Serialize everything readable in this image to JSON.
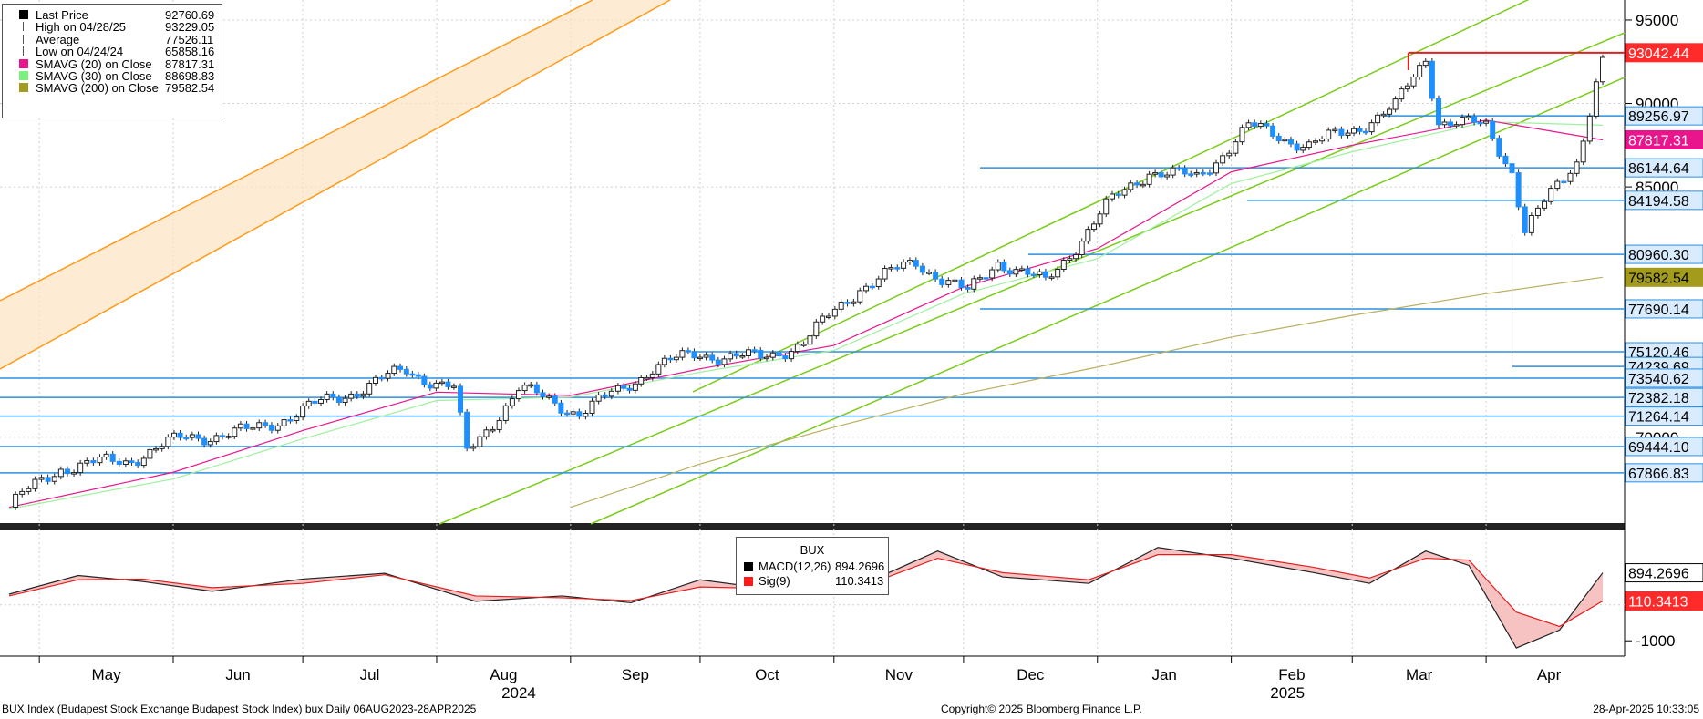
{
  "legend": {
    "rows": [
      {
        "label": "Last Price",
        "value": "92760.69",
        "color": "#000000",
        "marker": "square"
      },
      {
        "label": "High on 04/28/25",
        "value": "93229.05",
        "color": "#555555",
        "marker": "high"
      },
      {
        "label": "Average",
        "value": "77526.11",
        "color": "#555555",
        "marker": "avg"
      },
      {
        "label": "Low on 04/24/24",
        "value": "65858.16",
        "color": "#555555",
        "marker": "low"
      },
      {
        "label": "SMAVG (20)  on Close",
        "value": "87817.31",
        "color": "#e8158c",
        "marker": "square"
      },
      {
        "label": "SMAVG (30)  on Close",
        "value": "88698.83",
        "color": "#7cf07c",
        "marker": "square"
      },
      {
        "label": "SMAVG (200)  on Close",
        "value": "79582.54",
        "color": "#a39b1c",
        "marker": "square"
      }
    ]
  },
  "macd_legend": {
    "title": "BUX",
    "rows": [
      {
        "label": "MACD(12,26)",
        "value": "894.2696",
        "color": "#000000"
      },
      {
        "label": "Sig(9)",
        "value": "110.3413",
        "color": "#ff1a1a"
      }
    ]
  },
  "footer": {
    "left": "BUX Index (Budapest Stock Exchange Budapest Stock Index) bux  Daily 06AUG2023-28APR2025",
    "center": "Copyright© 2025 Bloomberg Finance L.P.",
    "right": "28-Apr-2025 10:33:05"
  },
  "chart_data": {
    "type": "line",
    "title": "",
    "price_axis": {
      "ylim": [
        64800,
        96200
      ],
      "ticks": [
        {
          "value": 95000,
          "label": "95000"
        },
        {
          "value": 90000,
          "label": "90000"
        },
        {
          "value": 85000,
          "label": "85000"
        },
        {
          "value": 70000,
          "label": "70000"
        }
      ]
    },
    "x_axis": {
      "months": [
        "May",
        "Jun",
        "Jul",
        "Aug",
        "Sep",
        "Oct",
        "Nov",
        "Dec",
        "Jan",
        "Feb",
        "Mar",
        "Apr"
      ],
      "years": [
        "2024",
        "2025"
      ]
    },
    "price_labels": [
      {
        "value": 93042.44,
        "label": "93042.44",
        "bg": "#ff2a2a",
        "fg": "#ffffff"
      },
      {
        "value": 89256.97,
        "label": "89256.97",
        "bg": "#d9ecff",
        "fg": "#000000"
      },
      {
        "value": 87817.31,
        "label": "87817.31",
        "bg": "#e8158c",
        "fg": "#ffffff"
      },
      {
        "value": 86144.64,
        "label": "86144.64",
        "bg": "#d9ecff",
        "fg": "#000000"
      },
      {
        "value": 84194.58,
        "label": "84194.58",
        "bg": "#d9ecff",
        "fg": "#000000"
      },
      {
        "value": 80960.3,
        "label": "80960.30",
        "bg": "#d9ecff",
        "fg": "#000000"
      },
      {
        "value": 79582.54,
        "label": "79582.54",
        "bg": "#a39b1c",
        "fg": "#000000"
      },
      {
        "value": 77690.14,
        "label": "77690.14",
        "bg": "#d9ecff",
        "fg": "#000000"
      },
      {
        "value": 75120.46,
        "label": "75120.46",
        "bg": "#d9ecff",
        "fg": "#000000"
      },
      {
        "value": 74239.69,
        "label": "74239.69",
        "bg": "#d9ecff",
        "fg": "#000000"
      },
      {
        "value": 73540.62,
        "label": "73540.62",
        "bg": "#d9ecff",
        "fg": "#000000"
      },
      {
        "value": 72382.18,
        "label": "72382.18",
        "bg": "#d9ecff",
        "fg": "#000000"
      },
      {
        "value": 71264.14,
        "label": "71264.14",
        "bg": "#d9ecff",
        "fg": "#000000"
      },
      {
        "value": 69444.1,
        "label": "69444.10",
        "bg": "#d9ecff",
        "fg": "#000000"
      },
      {
        "value": 67866.83,
        "label": "67866.83",
        "bg": "#d9ecff",
        "fg": "#000000"
      }
    ],
    "close_series": {
      "name": "Last Price",
      "x": [
        "2024-04-24",
        "2024-05-06",
        "2024-05-21",
        "2024-06-04",
        "2024-06-18",
        "2024-07-01",
        "2024-07-15",
        "2024-07-25",
        "2024-08-05",
        "2024-08-08",
        "2024-08-20",
        "2024-09-03",
        "2024-09-12",
        "2024-09-20",
        "2024-10-01",
        "2024-10-15",
        "2024-10-25",
        "2024-11-07",
        "2024-11-20",
        "2024-12-02",
        "2024-12-09",
        "2024-12-20",
        "2025-01-03",
        "2025-01-13",
        "2025-01-24",
        "2025-02-05",
        "2025-02-19",
        "2025-02-28",
        "2025-03-11",
        "2025-03-18",
        "2025-03-21",
        "2025-04-01",
        "2025-04-07",
        "2025-04-10",
        "2025-04-22",
        "2025-04-28"
      ],
      "values": [
        65900,
        68200,
        68600,
        70000,
        70300,
        71600,
        73000,
        74000,
        72900,
        69000,
        72900,
        71500,
        72700,
        74200,
        75000,
        74700,
        75700,
        79000,
        80500,
        78600,
        80600,
        79200,
        83800,
        86000,
        85500,
        88600,
        87500,
        88300,
        89800,
        92700,
        89000,
        88600,
        86000,
        82400,
        86600,
        92760
      ]
    },
    "sma20": {
      "name": "SMAVG (20) on Close",
      "x": [
        "2024-04-24",
        "2024-06-01",
        "2024-07-01",
        "2024-08-01",
        "2024-09-01",
        "2024-10-01",
        "2024-11-01",
        "2024-12-01",
        "2025-01-01",
        "2025-02-01",
        "2025-03-01",
        "2025-04-01",
        "2025-04-28"
      ],
      "values": [
        65800,
        67900,
        70400,
        72700,
        72500,
        74100,
        75500,
        79000,
        81300,
        85900,
        87500,
        89000,
        87817.31
      ]
    },
    "sma30": {
      "name": "SMAVG (30) on Close",
      "x": [
        "2024-04-24",
        "2024-06-01",
        "2024-07-01",
        "2024-08-01",
        "2024-09-01",
        "2024-10-01",
        "2024-11-01",
        "2024-12-01",
        "2025-01-01",
        "2025-02-01",
        "2025-03-01",
        "2025-04-01",
        "2025-04-28"
      ],
      "values": [
        65700,
        67500,
        69900,
        72200,
        72400,
        73900,
        75200,
        78600,
        80700,
        85200,
        87100,
        88900,
        88698.83
      ]
    },
    "sma200": {
      "name": "SMAVG (200) on Close",
      "x": [
        "2024-09-01",
        "2024-10-01",
        "2024-11-01",
        "2024-12-01",
        "2025-01-01",
        "2025-02-01",
        "2025-03-01",
        "2025-04-01",
        "2025-04-28"
      ],
      "values": [
        65800,
        68400,
        70600,
        72600,
        74200,
        76000,
        77300,
        78600,
        79582.54
      ]
    },
    "support_lines": [
      89256.97,
      86144.64,
      84194.58,
      80960.3,
      77690.14,
      75120.46,
      73540.62,
      72382.18,
      71264.14,
      69444.1,
      67866.83
    ],
    "macd_panel": {
      "ticks": [
        {
          "value": -1000,
          "label": "-1000"
        }
      ],
      "macd": {
        "name": "MACD(12,26)",
        "current": "894.2696",
        "x": [
          "2024-04-24",
          "2024-05-10",
          "2024-05-25",
          "2024-06-10",
          "2024-07-01",
          "2024-07-20",
          "2024-08-10",
          "2024-08-30",
          "2024-09-15",
          "2024-10-01",
          "2024-10-20",
          "2024-11-10",
          "2024-11-25",
          "2024-12-10",
          "2024-12-30",
          "2025-01-15",
          "2025-02-01",
          "2025-02-20",
          "2025-03-05",
          "2025-03-18",
          "2025-03-28",
          "2025-04-08",
          "2025-04-18",
          "2025-04-28"
        ],
        "values": [
          300,
          820,
          650,
          380,
          720,
          880,
          100,
          250,
          60,
          700,
          400,
          700,
          1500,
          780,
          600,
          1600,
          1300,
          900,
          600,
          1500,
          1100,
          -1200,
          -700,
          894.27
        ]
      },
      "signal": {
        "name": "Sig(9)",
        "current": "110.3413",
        "x": [
          "2024-04-24",
          "2024-05-10",
          "2024-05-25",
          "2024-06-10",
          "2024-07-01",
          "2024-07-20",
          "2024-08-10",
          "2024-08-30",
          "2024-09-15",
          "2024-10-01",
          "2024-10-20",
          "2024-11-10",
          "2024-11-25",
          "2024-12-10",
          "2024-12-30",
          "2025-01-15",
          "2025-02-01",
          "2025-02-20",
          "2025-03-05",
          "2025-03-18",
          "2025-03-28",
          "2025-04-08",
          "2025-04-18",
          "2025-04-28"
        ],
        "values": [
          250,
          700,
          720,
          480,
          600,
          840,
          250,
          200,
          120,
          500,
          450,
          620,
          1300,
          900,
          700,
          1400,
          1400,
          1050,
          750,
          1300,
          1250,
          -200,
          -600,
          110.34
        ]
      }
    }
  }
}
